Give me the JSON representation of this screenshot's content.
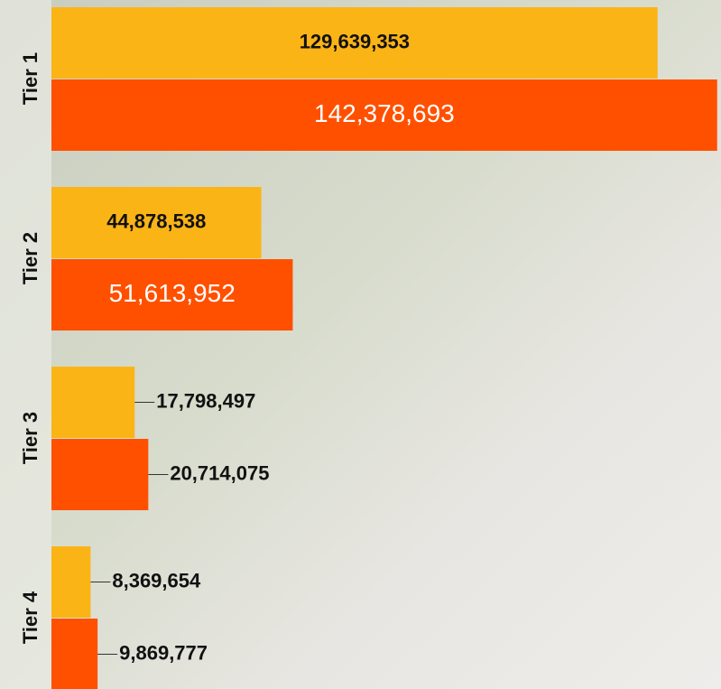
{
  "chart_data": {
    "type": "hbar",
    "categories": [
      "Tier 1",
      "Tier 2",
      "Tier 3",
      "Tier 4"
    ],
    "series": [
      {
        "color": "#fbb416",
        "values": [
          129639353,
          44878538,
          17798497,
          8369654
        ],
        "value_labels": [
          "129,639,353",
          "44,878,538",
          "17,798,497",
          "8,369,654"
        ]
      },
      {
        "color": "#ff5000",
        "values": [
          142378693,
          51613952,
          20714075,
          9869777
        ],
        "value_labels": [
          "142,378,693",
          "51,613,952",
          "20,714,075",
          "9,869,777"
        ]
      }
    ],
    "xlim": [
      0,
      143200000
    ]
  }
}
